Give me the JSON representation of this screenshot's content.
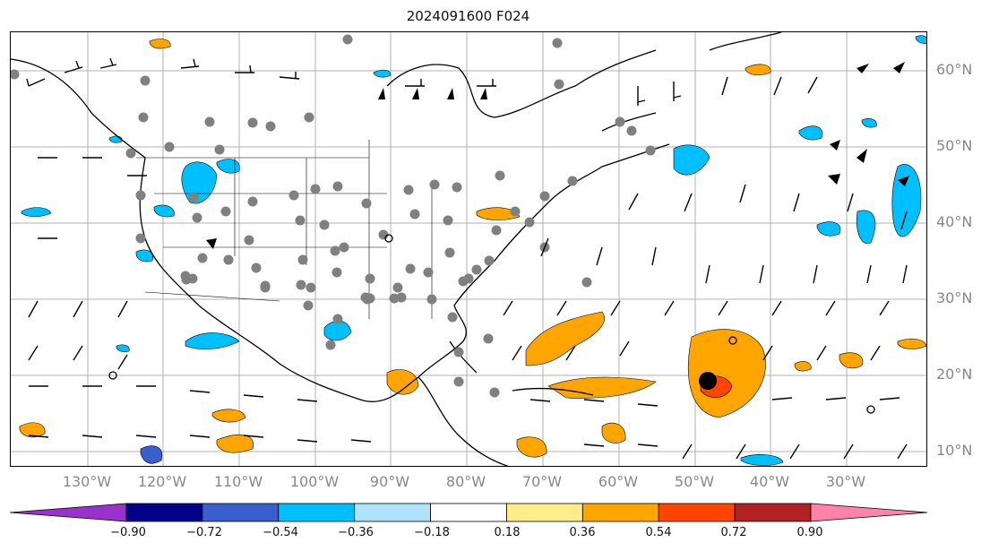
{
  "title": "2024091600 F024",
  "lat_labels": [
    "60°N",
    "50°N",
    "40°N",
    "30°N",
    "20°N",
    "10°N"
  ],
  "lon_labels": [
    "130°W",
    "120°W",
    "110°W",
    "100°W",
    "90°W",
    "80°W",
    "70°W",
    "60°W",
    "50°W",
    "40°W",
    "30°W"
  ],
  "colorbar": {
    "ticks": [
      "−0.90",
      "−0.72",
      "−0.54",
      "−0.36",
      "−0.18",
      "0.18",
      "0.36",
      "0.54",
      "0.72",
      "0.90"
    ],
    "colors": [
      "#9932cc",
      "#00008b",
      "#3a5fcd",
      "#00bfff",
      "#b0e2ff",
      "#ffffff",
      "#ffec8b",
      "#ffa500",
      "#ff4500",
      "#b22222",
      "#ff82ab"
    ]
  },
  "colors": {
    "land_outline": "#000000",
    "grid": "#b0b0b0",
    "station_dot": "#808080",
    "storm_center": "#000000"
  },
  "storm_center": {
    "lon": -48.0,
    "lat": 19.2
  }
}
